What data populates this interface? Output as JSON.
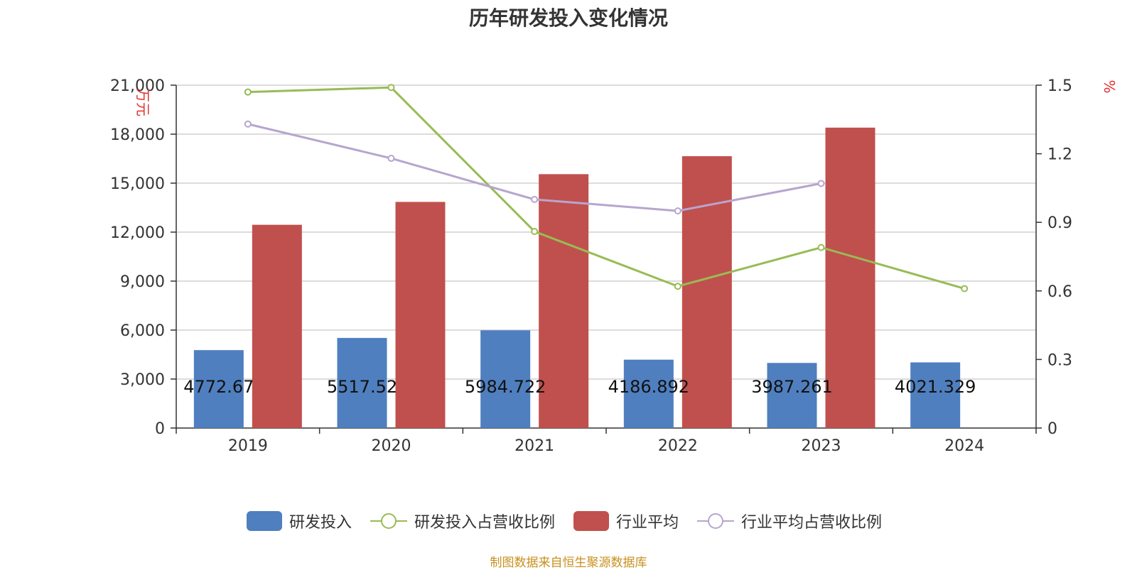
{
  "colors": {
    "rd": "#4f7fbf",
    "rd_ratio": "#99bb55",
    "ind": "#c0504d",
    "ind_ratio": "#b7a5cf",
    "axis_unit": "#e03030",
    "source": "#c8901e"
  },
  "chart_data": {
    "type": "bar",
    "title": "历年研发投入变化情况",
    "categories": [
      "2019",
      "2020",
      "2021",
      "2022",
      "2023",
      "2024"
    ],
    "y_left": {
      "label": "万元",
      "range": [
        0,
        21000
      ],
      "ticks": [
        0,
        3000,
        6000,
        9000,
        12000,
        15000,
        18000,
        21000
      ]
    },
    "y_right": {
      "label": "%",
      "range": [
        0,
        1.5
      ],
      "ticks": [
        0,
        0.3,
        0.6,
        0.9,
        1.2,
        1.5
      ]
    },
    "grid": true,
    "legend_position": "bottom",
    "series": [
      {
        "name": "研发投入",
        "kind": "bar",
        "axis": "left",
        "color": "#4f7fbf",
        "values": [
          4772.67,
          5517.52,
          5984.722,
          4186.892,
          3987.261,
          4021.329
        ],
        "labels": [
          "4772.67",
          "5517.52",
          "5984.722",
          "4186.892",
          "3987.261",
          "4021.329"
        ]
      },
      {
        "name": "研发投入占营收比例",
        "kind": "line",
        "axis": "right",
        "color": "#99bb55",
        "values": [
          1.47,
          1.49,
          0.86,
          0.62,
          0.79,
          0.61
        ]
      },
      {
        "name": "行业平均",
        "kind": "bar",
        "axis": "left",
        "color": "#c0504d",
        "values": [
          12450,
          13850,
          15550,
          16650,
          18400,
          null
        ]
      },
      {
        "name": "行业平均占营收比例",
        "kind": "line",
        "axis": "right",
        "color": "#b7a5cf",
        "values": [
          1.33,
          1.18,
          1.0,
          0.95,
          1.07,
          null
        ]
      }
    ]
  },
  "source_note": "制图数据来自恒生聚源数据库"
}
